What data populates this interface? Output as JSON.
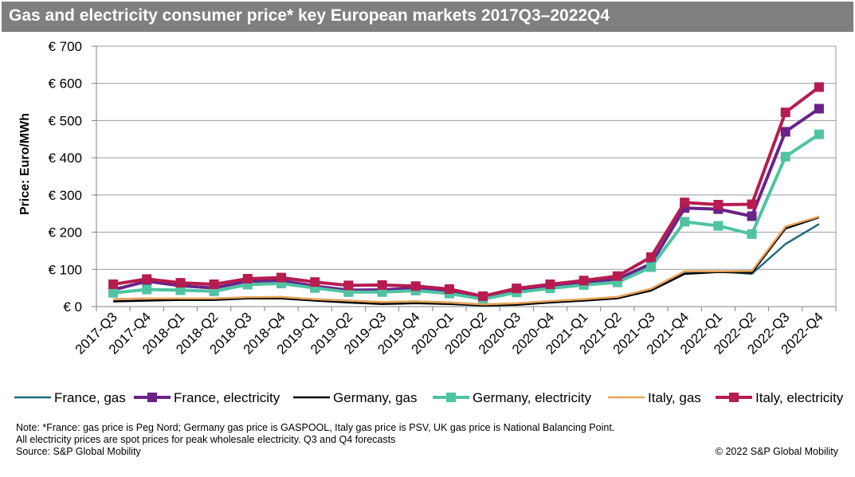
{
  "header": {
    "title": "Gas and electricity consumer price* key European markets 2017Q3–2022Q4"
  },
  "chart_data": {
    "type": "line",
    "title": "Gas and electricity consumer price* key European markets 2017Q3–2022Q4",
    "xlabel": "",
    "ylabel": "Price: Euro/MWh",
    "ylim": [
      0,
      700
    ],
    "yticks": [
      "€ 0",
      "€ 100",
      "€ 200",
      "€ 300",
      "€ 400",
      "€ 500",
      "€ 600",
      "€ 700"
    ],
    "categories": [
      "2017-Q3",
      "2017-Q4",
      "2018-Q1",
      "2018-Q2",
      "2018-Q3",
      "2018-Q4",
      "2019-Q1",
      "2019-Q2",
      "2019-Q3",
      "2019-Q4",
      "2020-Q1",
      "2020-Q2",
      "2020-Q3",
      "2020-Q4",
      "2021-Q1",
      "2021-Q2",
      "2021-Q3",
      "2021-Q4",
      "2022-Q1",
      "2022-Q2",
      "2022-Q3",
      "2022-Q4"
    ],
    "grid": true,
    "legend_position": "bottom",
    "series": [
      {
        "name": "France, gas",
        "color": "#1f6b7f",
        "marker": false,
        "values": [
          20,
          22,
          22,
          22,
          24,
          25,
          20,
          16,
          12,
          14,
          11,
          6,
          8,
          14,
          19,
          25,
          47,
          92,
          95,
          88,
          168,
          222
        ]
      },
      {
        "name": "France, electricity",
        "color": "#6a2387",
        "marker": true,
        "values": [
          45,
          68,
          56,
          50,
          68,
          70,
          55,
          44,
          45,
          50,
          40,
          22,
          42,
          55,
          65,
          74,
          115,
          265,
          262,
          243,
          470,
          532
        ]
      },
      {
        "name": "Germany, gas",
        "color": "#000000",
        "marker": false,
        "values": [
          14,
          16,
          18,
          18,
          22,
          22,
          16,
          11,
          7,
          9,
          7,
          3,
          5,
          11,
          16,
          22,
          43,
          88,
          93,
          91,
          210,
          240
        ]
      },
      {
        "name": "Germany, electricity",
        "color": "#4fc3a2",
        "marker": true,
        "values": [
          37,
          46,
          44,
          41,
          59,
          62,
          50,
          39,
          39,
          43,
          35,
          20,
          38,
          49,
          58,
          65,
          106,
          228,
          217,
          195,
          403,
          463
        ]
      },
      {
        "name": "Italy, gas",
        "color": "#e8a45a",
        "marker": false,
        "values": [
          20,
          22,
          22,
          22,
          25,
          26,
          20,
          16,
          12,
          14,
          11,
          6,
          9,
          15,
          20,
          26,
          48,
          95,
          95,
          96,
          215,
          242
        ]
      },
      {
        "name": "Italy, electricity",
        "color": "#b71c4f",
        "marker": true,
        "values": [
          60,
          74,
          64,
          60,
          75,
          78,
          66,
          57,
          58,
          55,
          47,
          28,
          49,
          60,
          70,
          82,
          133,
          280,
          274,
          275,
          522,
          590
        ]
      }
    ]
  },
  "notes": {
    "line1": "Note: *France: gas price is Peg Nord; Germany gas price is GASPOOL, Italy gas price is PSV, UK gas price is National Balancing Point.",
    "line2": "All electricity prices are spot prices for peak wholesale electricity. Q3 and Q4 forecasts",
    "line3": "Source: S&P Global Mobility",
    "copyright": "© 2022 S&P Global Mobility"
  }
}
